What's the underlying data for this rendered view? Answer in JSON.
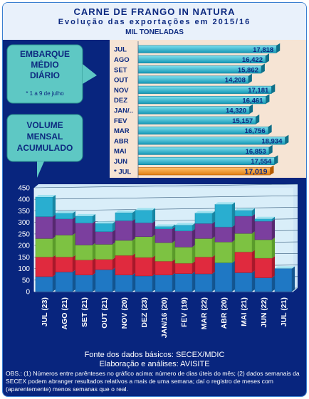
{
  "header": {
    "title": "CARNE DE FRANGO IN NATURA",
    "subtitle": "Evolução das exportações em 2015/16",
    "unit": "MIL TONELADAS"
  },
  "colors": {
    "accent_navy": "#08257e",
    "teal": "#2fb6cf",
    "highlight_orange": "#f39a31",
    "badge_green": "#5ec8c4",
    "seg_blue": "#1f78c4",
    "seg_red": "#e02a3e",
    "seg_green": "#7dc242",
    "seg_purple": "#7b3f9e",
    "seg_cyan": "#29aed0"
  },
  "chart_data": [
    {
      "type": "bar",
      "orientation": "horizontal",
      "badge_title": "EMBARQUE MÉDIO DIÁRIO",
      "badge_note": "* 1 a 9 de julho",
      "categories": [
        "JUL",
        "AGO",
        "SET",
        "OUT",
        "NOV",
        "DEZ",
        "JAN/..",
        "FEV",
        "MAR",
        "ABR",
        "MAI",
        "JUN",
        "* JUL"
      ],
      "value_labels": [
        "17,818",
        "16,422",
        "15,862",
        "14,208",
        "17,181",
        "16,461",
        "14,320",
        "15,157",
        "16,756",
        "18,934",
        "16,853",
        "17,554",
        "17,019"
      ],
      "values": [
        17.818,
        16.422,
        15.862,
        14.208,
        17.181,
        16.461,
        14.32,
        15.157,
        16.756,
        18.934,
        16.853,
        17.554,
        17.019
      ],
      "highlight_index": 12,
      "xlim": [
        0,
        20
      ]
    },
    {
      "type": "bar",
      "stacked": true,
      "badge_title": "VOLUME MENSAL ACUMULADO",
      "categories": [
        "JUL (23)",
        "AGO (21)",
        "SET (21)",
        "OUT (21)",
        "NOV (20)",
        "DEZ (23)",
        "JAN/16 (20)",
        "FEV (19)",
        "MAR (22)",
        "ABR (20)",
        "MAI (21)",
        "JUN (22)",
        "JUL (21)"
      ],
      "y_ticks": [
        "0",
        "50",
        "100",
        "150",
        "200",
        "250",
        "300",
        "350",
        "400",
        "450"
      ],
      "ylim": [
        0,
        450
      ],
      "grid": true,
      "series": [
        {
          "values": [
            65,
            85,
            72,
            95,
            72,
            68,
            72,
            78,
            77,
            125,
            82,
            60,
            100
          ]
        },
        {
          "values": [
            85,
            65,
            65,
            45,
            85,
            80,
            60,
            45,
            73,
            0,
            90,
            85,
            0
          ]
        },
        {
          "values": [
            80,
            95,
            65,
            65,
            65,
            90,
            80,
            70,
            80,
            90,
            80,
            80,
            0
          ]
        },
        {
          "values": [
            95,
            70,
            95,
            55,
            85,
            60,
            60,
            70,
            65,
            65,
            75,
            80,
            0
          ]
        },
        {
          "values": [
            85,
            25,
            30,
            35,
            35,
            55,
            10,
            25,
            45,
            98,
            25,
            10,
            0
          ]
        }
      ]
    }
  ],
  "footer": {
    "source": "Fonte dos dados básicos: SECEX/MDIC",
    "credit": "Elaboração e análises: AVISITE",
    "obs": "OBS.: (1) Números entre parênteses no gráfico acima: número de dias úteis do mês; (2) dados semanais da SECEX podem abranger resultados relativos a mais de uma semana; daí o registro de meses com (aparentemente) menos semanas que o real."
  }
}
